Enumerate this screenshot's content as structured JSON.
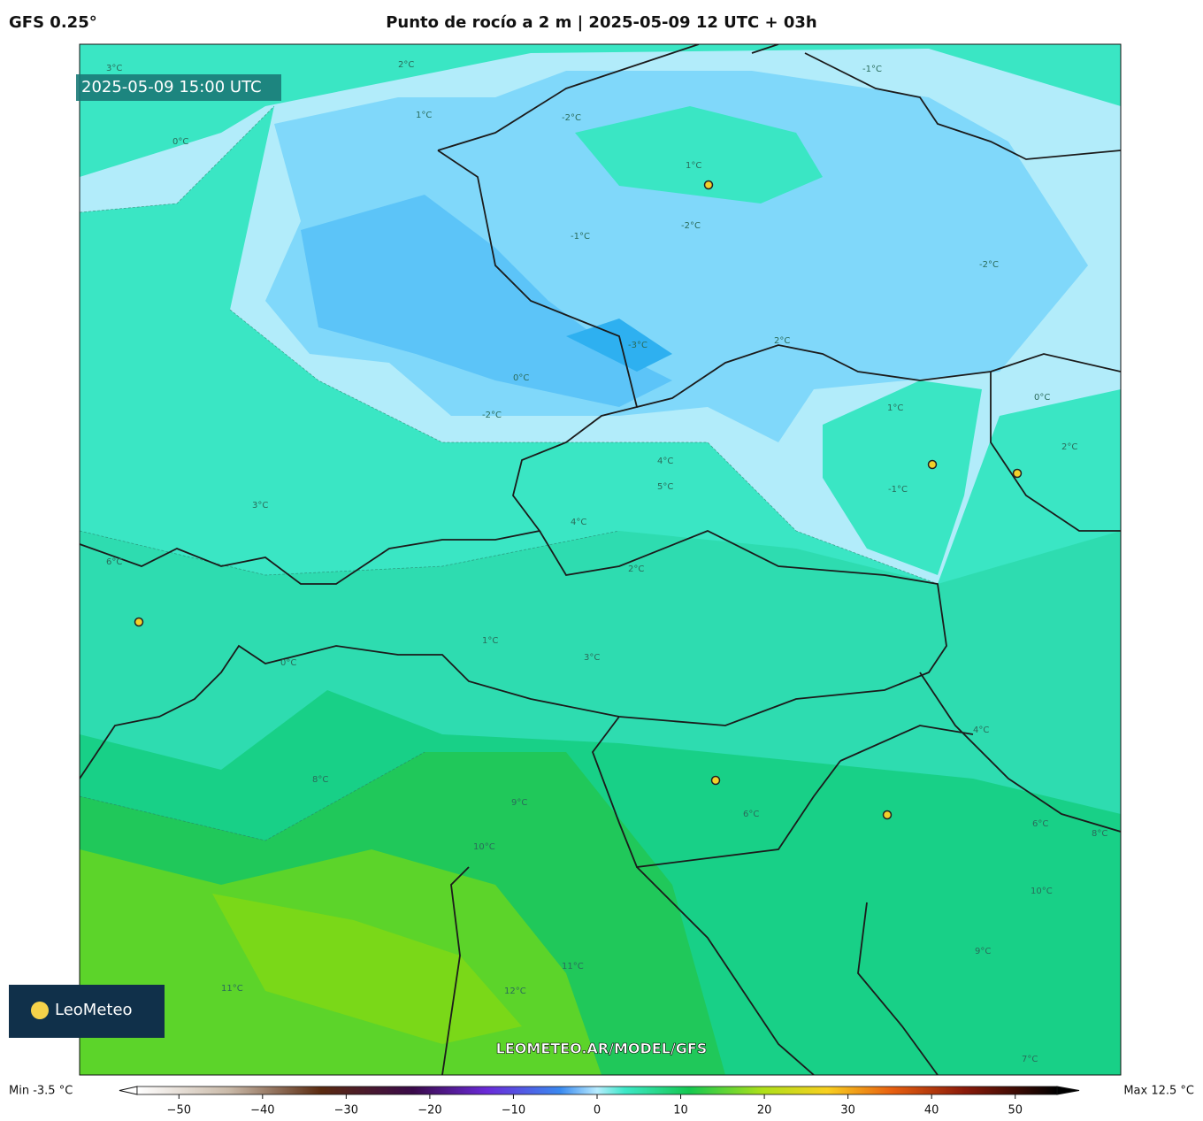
{
  "header": {
    "model": "GFS 0.25°",
    "title": "Punto de rocío a 2 m | 2025-05-09 12 UTC + 03h"
  },
  "map": {
    "valid_time": "2025-05-09 15:00 UTC",
    "watermark": "LEOMETEO.AR/MODEL/GFS",
    "logo": "LeoMeteo",
    "contour_labels": [
      "3°C",
      "2°C",
      "1°C",
      "0°C",
      "-1°C",
      "-2°C",
      "-1°C",
      "1°C",
      "-2°C",
      "-3°C",
      "0°C",
      "-2°C",
      "4°C",
      "5°C",
      "4°C",
      "3°C",
      "2°C",
      "1°C",
      "0°C",
      "2°C",
      "3°C",
      "6°C",
      "8°C",
      "9°C",
      "10°C",
      "11°C",
      "12°C",
      "6°C",
      "8°C",
      "10°C",
      "9°C",
      "11°C",
      "7°C",
      "2°C",
      "-1°C",
      "1°C",
      "0°C",
      "-2°C",
      "6°C",
      "4°C"
    ]
  },
  "colorbar": {
    "min_label": "Min -3.5 °C",
    "max_label": "Max 12.5 °C",
    "lim": [
      -55,
      55
    ],
    "ticks": [
      {
        "value": -50,
        "label": "−50"
      },
      {
        "value": -40,
        "label": "−40"
      },
      {
        "value": -30,
        "label": "−30"
      },
      {
        "value": -20,
        "label": "−20"
      },
      {
        "value": -10,
        "label": "−10"
      },
      0,
      10,
      20,
      30,
      40,
      50
    ]
  }
}
